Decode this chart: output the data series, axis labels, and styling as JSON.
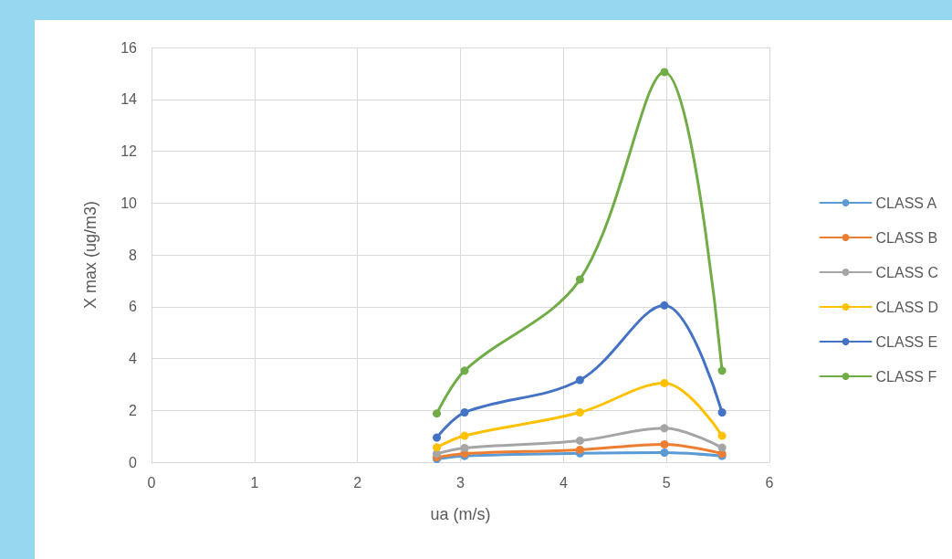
{
  "chart_data": {
    "type": "line",
    "xlabel": "ua (m/s)",
    "ylabel": "X max (ug/m3)",
    "x": [
      2.77,
      3.04,
      4.16,
      4.98,
      5.54
    ],
    "series": [
      {
        "name": "CLASS A",
        "color": "#5b9bd5",
        "values": [
          0.12,
          0.24,
          0.34,
          0.37,
          0.24
        ]
      },
      {
        "name": "CLASS B",
        "color": "#ed7d31",
        "values": [
          0.19,
          0.33,
          0.48,
          0.69,
          0.33
        ]
      },
      {
        "name": "CLASS C",
        "color": "#a5a5a5",
        "values": [
          0.33,
          0.55,
          0.83,
          1.31,
          0.56
        ]
      },
      {
        "name": "CLASS D",
        "color": "#ffc000",
        "values": [
          0.57,
          1.02,
          1.92,
          3.05,
          1.02
        ]
      },
      {
        "name": "CLASS E",
        "color": "#4472c4",
        "values": [
          0.95,
          1.92,
          3.17,
          6.05,
          1.92
        ]
      },
      {
        "name": "CLASS F",
        "color": "#70ad47",
        "values": [
          1.88,
          3.53,
          7.05,
          15.05,
          3.53
        ]
      }
    ],
    "xlim": [
      0,
      6
    ],
    "xticks": [
      0,
      1,
      2,
      3,
      4,
      5,
      6
    ],
    "ylim": [
      0,
      16
    ],
    "yticks": [
      0,
      2,
      4,
      6,
      8,
      10,
      12,
      14,
      16
    ],
    "grid": true,
    "legend": "right",
    "marker": "circle",
    "line_style": "solid"
  }
}
